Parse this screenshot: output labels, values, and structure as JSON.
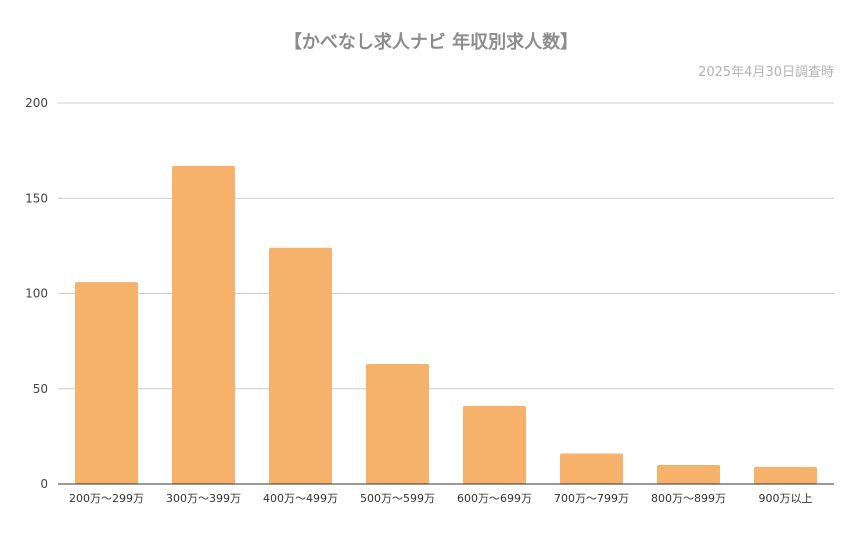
{
  "chart_data": {
    "type": "bar",
    "title": "【かべなし求人ナビ 年収別求人数】",
    "subtitle": "2025年4月30日調査時",
    "categories": [
      "200万～299万",
      "300万～399万",
      "400万～499万",
      "500万～599万",
      "600万～699万",
      "700万～799万",
      "800万～899万",
      "900万以上"
    ],
    "values": [
      106,
      167,
      124,
      63,
      41,
      16,
      10,
      9
    ],
    "ylim": [
      0,
      200
    ],
    "yticks": [
      0,
      50,
      100,
      150,
      200
    ],
    "xlabel": "",
    "ylabel": "",
    "grid": true,
    "legend": "none",
    "bar_color": "#f6b26b"
  }
}
